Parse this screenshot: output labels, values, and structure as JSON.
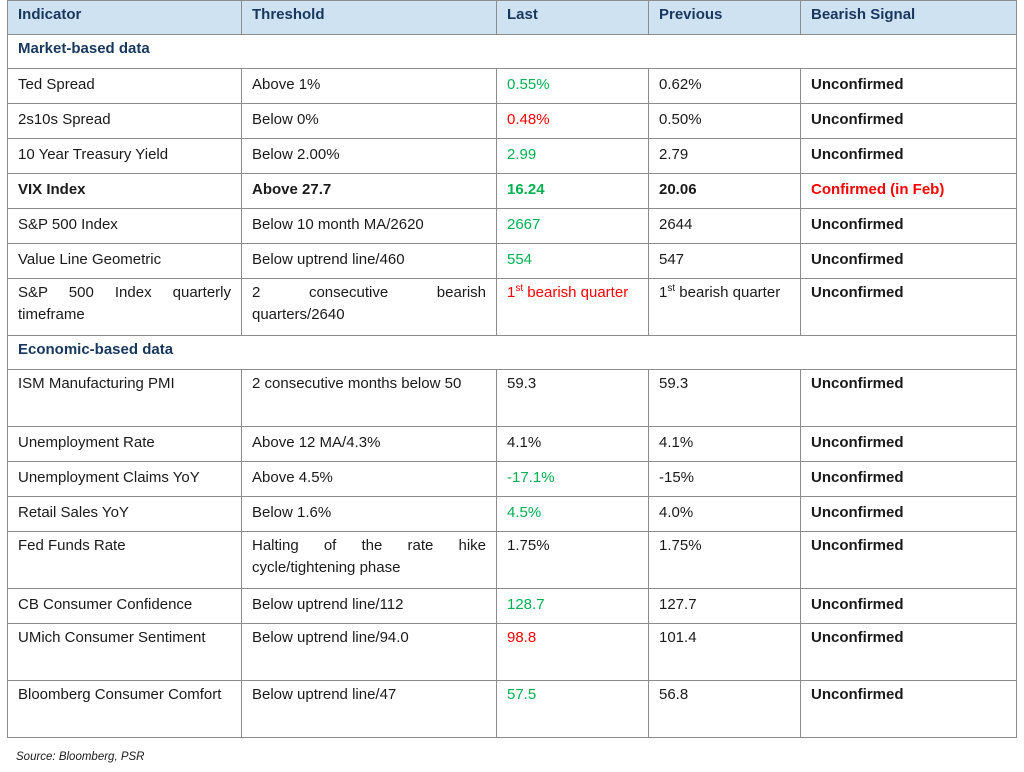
{
  "headers": [
    "Indicator",
    "Threshold",
    "Last",
    "Previous",
    "Bearish Signal"
  ],
  "sections": [
    {
      "title": "Market-based data",
      "rows": [
        {
          "indicator": "Ted Spread",
          "threshold": "Above 1%",
          "last": "0.55%",
          "last_color": "green",
          "previous": "0.62%",
          "signal": "Unconfirmed",
          "signal_color": "black"
        },
        {
          "indicator": "2s10s Spread",
          "threshold": "Below 0%",
          "last": "0.48%",
          "last_color": "red",
          "previous": "0.50%",
          "signal": "Unconfirmed",
          "signal_color": "black"
        },
        {
          "indicator": "10 Year Treasury Yield",
          "threshold": "Below 2.00%",
          "last": "2.99",
          "last_color": "green",
          "previous": "2.79",
          "signal": "Unconfirmed",
          "signal_color": "black"
        },
        {
          "indicator": "VIX Index",
          "threshold": "Above 27.7",
          "last": "16.24",
          "last_color": "green",
          "previous": "20.06",
          "signal": "Confirmed (in Feb)",
          "signal_color": "red",
          "bold": true
        },
        {
          "indicator": "S&P 500 Index",
          "threshold": "Below 10 month MA/2620",
          "last": "2667",
          "last_color": "green",
          "previous": "2644",
          "signal": "Unconfirmed",
          "signal_color": "black"
        },
        {
          "indicator": "Value Line Geometric",
          "threshold": "Below uptrend line/460",
          "last": "554",
          "last_color": "green",
          "previous": "547",
          "signal": "Unconfirmed",
          "signal_color": "black"
        },
        {
          "indicator": "S&P 500 Index quarterly timeframe",
          "threshold": "2 consecutive bearish quarters/2640",
          "last_sup": "1",
          "last_sup_suffix": "st",
          "last": " bearish quarter",
          "last_color": "red",
          "previous_sup": "1",
          "previous_sup_suffix": "st",
          "previous": " bearish quarter",
          "signal": "Unconfirmed",
          "signal_color": "black",
          "tall": true,
          "justify_indicator": true,
          "justify_threshold": true
        }
      ]
    },
    {
      "title": "Economic-based data",
      "rows": [
        {
          "indicator": "ISM Manufacturing PMI",
          "threshold": "2 consecutive months below 50",
          "last": "59.3",
          "last_color": "black",
          "previous": "59.3",
          "signal": "Unconfirmed",
          "signal_color": "black",
          "tall": true,
          "justify_threshold": true
        },
        {
          "indicator": "Unemployment Rate",
          "threshold": "Above 12 MA/4.3%",
          "last": "4.1%",
          "last_color": "black",
          "previous": "4.1%",
          "signal": "Unconfirmed",
          "signal_color": "black"
        },
        {
          "indicator": "Unemployment Claims YoY",
          "threshold": "Above 4.5%",
          "last": "-17.1%",
          "last_color": "green",
          "previous": "-15%",
          "signal": "Unconfirmed",
          "signal_color": "black"
        },
        {
          "indicator": "Retail Sales YoY",
          "threshold": "Below 1.6%",
          "last": "4.5%",
          "last_color": "green",
          "previous": "4.0%",
          "signal": "Unconfirmed",
          "signal_color": "black"
        },
        {
          "indicator": "Fed Funds Rate",
          "threshold": "Halting of the rate hike cycle/tightening phase",
          "last": "1.75%",
          "last_color": "black",
          "previous": "1.75%",
          "signal": "Unconfirmed",
          "signal_color": "black",
          "tall": true,
          "justify_threshold": true
        },
        {
          "indicator": "CB Consumer Confidence",
          "threshold": "Below uptrend line/112",
          "last": "128.7",
          "last_color": "green",
          "previous": "127.7",
          "signal": "Unconfirmed",
          "signal_color": "black"
        },
        {
          "indicator": "UMich Consumer Sentiment",
          "threshold": "Below uptrend line/94.0",
          "last": "98.8",
          "last_color": "red",
          "previous": "101.4",
          "signal": "Unconfirmed",
          "signal_color": "black",
          "tall": true,
          "justify_indicator": true
        },
        {
          "indicator": "Bloomberg Consumer Comfort",
          "threshold": "Below uptrend line/47",
          "last": "57.5",
          "last_color": "green",
          "previous": "56.8",
          "signal": "Unconfirmed",
          "signal_color": "black",
          "tall": true,
          "justify_indicator": true
        }
      ]
    }
  ],
  "source": "Source: Bloomberg, PSR",
  "colors": {
    "header_bg": "#cfe2f2",
    "header_text": "#17375e",
    "green": "#00b050",
    "red": "#ff0000",
    "border": "#8c8c8c"
  }
}
